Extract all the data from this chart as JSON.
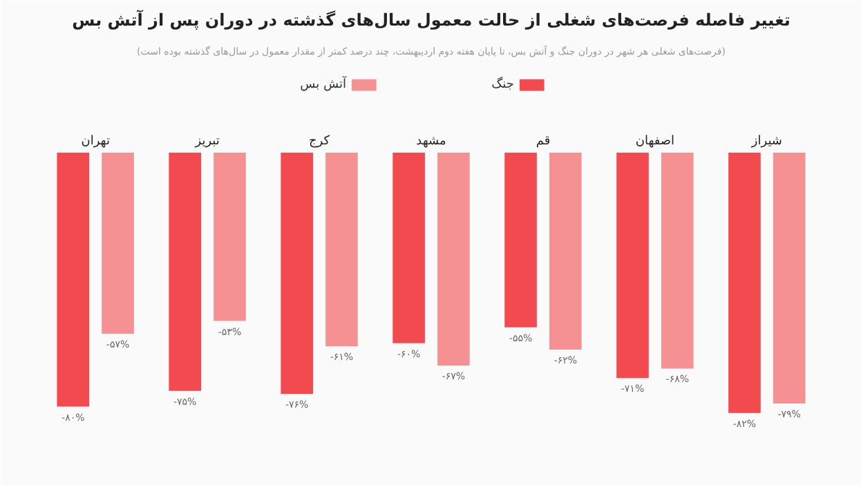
{
  "chart_data": {
    "type": "bar",
    "title": "تغییر فاصله فرصت‌های شغلی از حالت معمول سال‌های گذشته در دوران پس از آتش بس",
    "subtitle": "(فرصت‌های شغلی هر شهر در دوران جنگ و آتش بس، تا پایان هفته دوم اردیبهشت، چند درصد کمتر از مقدار معمول در سال‌های گذشته بوده است)",
    "categories": [
      "تهران",
      "تبریز",
      "کرج",
      "مشهد",
      "قم",
      "اصفهان",
      "شیراز"
    ],
    "series": [
      {
        "name": "جنگ",
        "color": "#f34a50",
        "values": [
          -80,
          -75,
          -76,
          -60,
          -55,
          -71,
          -82
        ],
        "value_labels": [
          "-۸۰%",
          "-۷۵%",
          "-۷۶%",
          "-۶۰%",
          "-۵۵%",
          "-۷۱%",
          "-۸۲%"
        ]
      },
      {
        "name": "آتش بس",
        "color": "#f59193",
        "values": [
          -57,
          -53,
          -61,
          -67,
          -62,
          -68,
          -79
        ],
        "value_labels": [
          "-۵۷%",
          "-۵۳%",
          "-۶۱%",
          "-۶۷%",
          "-۶۲%",
          "-۶۸%",
          "-۷۹%"
        ]
      }
    ],
    "tick_labels": false,
    "grid": false,
    "legend": "top"
  }
}
